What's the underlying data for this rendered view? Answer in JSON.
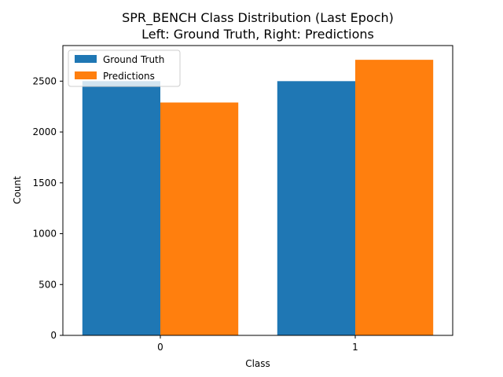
{
  "chart_data": {
    "type": "bar",
    "title": "SPR_BENCH Class Distribution (Last Epoch)",
    "subtitle": "Left: Ground Truth, Right: Predictions",
    "xlabel": "Class",
    "ylabel": "Count",
    "categories": [
      "0",
      "1"
    ],
    "series": [
      {
        "name": "Ground Truth",
        "values": [
          2500,
          2500
        ],
        "color": "#1f77b4"
      },
      {
        "name": "Predictions",
        "values": [
          2290,
          2710
        ],
        "color": "#ff7f0e"
      }
    ],
    "ylim": [
      0,
      2850
    ],
    "yticks": [
      0,
      500,
      1000,
      1500,
      2000,
      2500
    ],
    "grid": false,
    "legend_position": "top-left"
  }
}
